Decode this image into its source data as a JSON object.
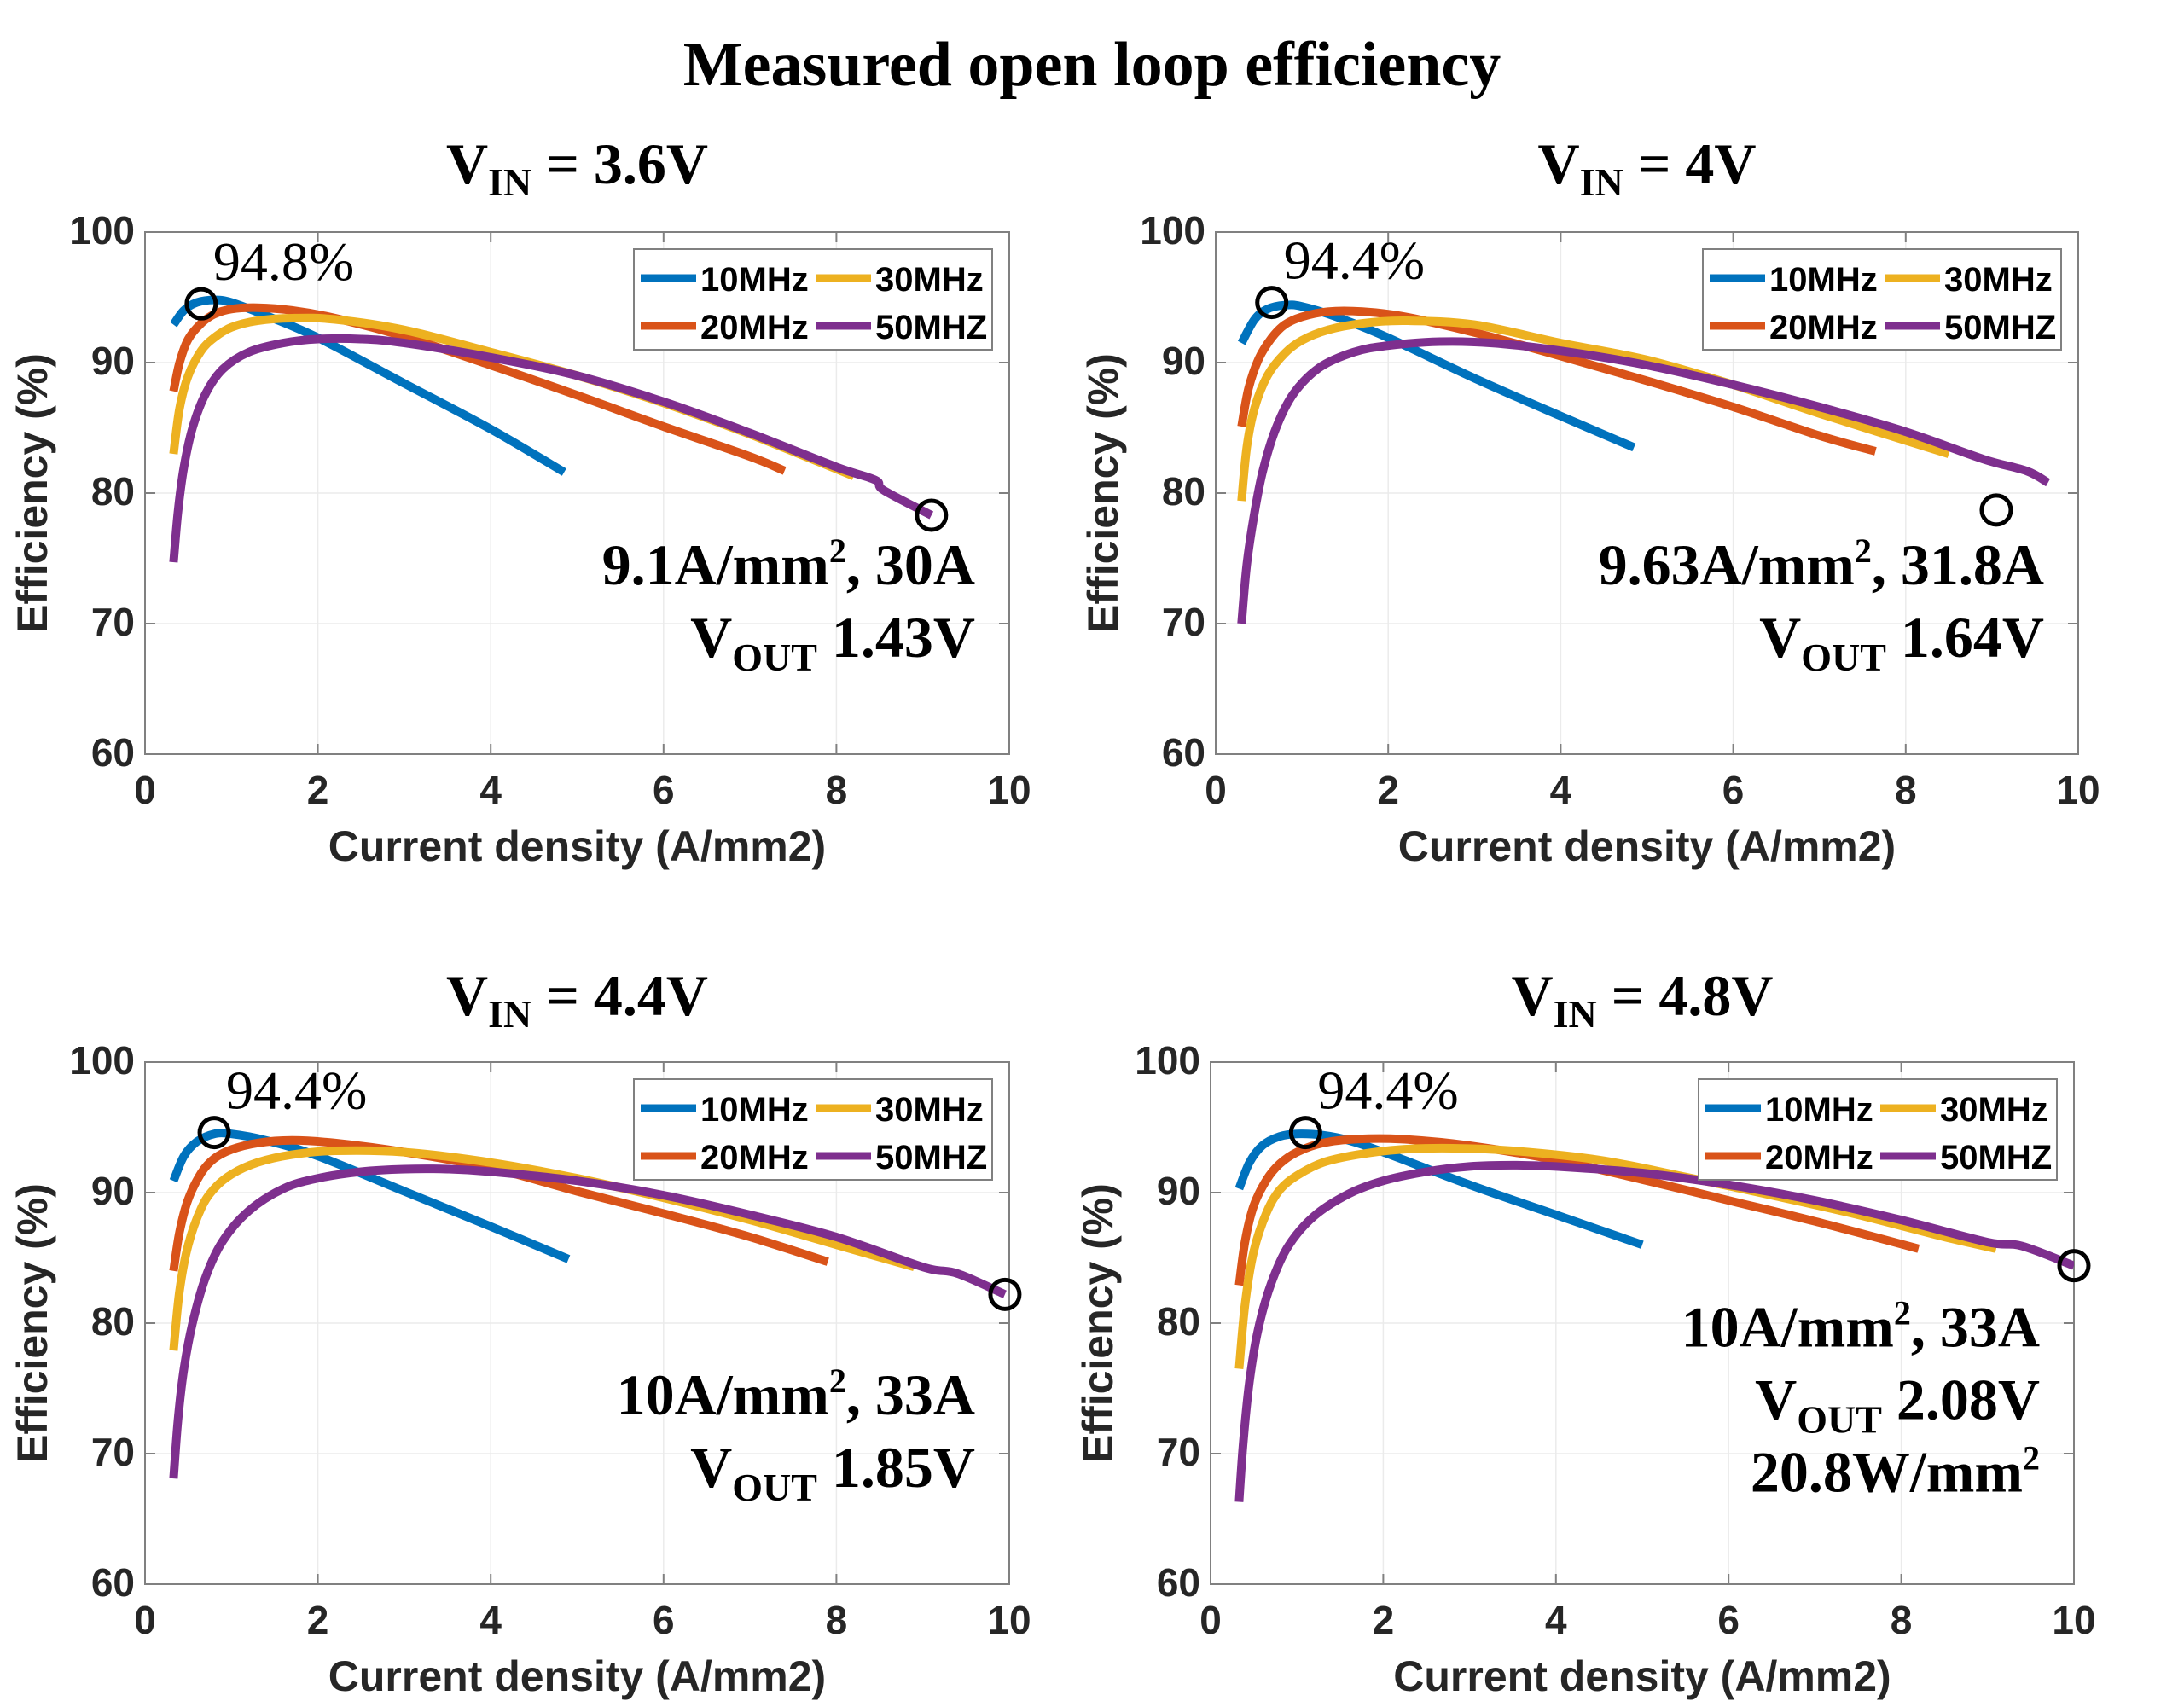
{
  "title": "Measured open loop efficiency",
  "series_colors": {
    "10MHz": "#0072BD",
    "20MHz": "#D95319",
    "30MHz": "#EDB120",
    "50MHZ": "#7E2F8E"
  },
  "chart_data": [
    {
      "type": "line",
      "id": "vin36",
      "title_main": "V",
      "title_sub": "IN",
      "title_rest": " = 3.6V",
      "xlabel": "Current density (A/mm2)",
      "ylabel": "Efficiency (%)",
      "xlim": [
        0,
        10
      ],
      "ylim": [
        60,
        100
      ],
      "xticks": [
        0,
        2,
        4,
        6,
        8,
        10
      ],
      "yticks": [
        60,
        70,
        80,
        90,
        100
      ],
      "grid": true,
      "legend": [
        "10MHz",
        "30MHz",
        "20MHz",
        "50MHZ"
      ],
      "legend_position": "top-right",
      "peak_label": "94.8%",
      "peak_marker": [
        0.65,
        94.5
      ],
      "end_marker": [
        9.1,
        78.3
      ],
      "notes": [
        {
          "parts": [
            [
              "t",
              "9.1A/mm"
            ],
            [
              "sup",
              "2"
            ],
            [
              "t",
              ", 30A"
            ]
          ]
        },
        {
          "parts": [
            [
              "t",
              "V"
            ],
            [
              "sub",
              "OUT"
            ],
            [
              "t",
              " 1.43V"
            ]
          ]
        }
      ],
      "series": [
        {
          "name": "10MHz",
          "x": [
            0.33,
            0.45,
            0.6,
            0.8,
            1.0,
            1.4,
            2.0,
            3.0,
            4.0,
            4.85
          ],
          "y": [
            92.9,
            94.0,
            94.6,
            94.8,
            94.6,
            93.6,
            91.9,
            88.4,
            84.9,
            81.6
          ]
        },
        {
          "name": "20MHz",
          "x": [
            0.33,
            0.4,
            0.5,
            0.65,
            0.8,
            1.0,
            1.3,
            1.7,
            2.2,
            3.0,
            4.0,
            5.0,
            6.0,
            7.0,
            7.4
          ],
          "y": [
            87.8,
            90.0,
            91.8,
            93.0,
            93.7,
            94.1,
            94.2,
            94.0,
            93.4,
            92.0,
            89.8,
            87.5,
            85.1,
            82.8,
            81.7
          ]
        },
        {
          "name": "30MHz",
          "x": [
            0.33,
            0.4,
            0.5,
            0.65,
            0.8,
            1.0,
            1.3,
            1.7,
            2.2,
            3.0,
            4.0,
            5.0,
            6.0,
            7.0,
            8.2
          ],
          "y": [
            83.0,
            86.5,
            89.0,
            90.9,
            91.9,
            92.7,
            93.2,
            93.4,
            93.3,
            92.5,
            90.8,
            89.0,
            86.9,
            84.5,
            81.3
          ]
        },
        {
          "name": "50MHZ",
          "x": [
            0.33,
            0.38,
            0.45,
            0.55,
            0.7,
            0.9,
            1.2,
            1.6,
            2.0,
            2.5,
            3.0,
            4.0,
            5.0,
            6.0,
            7.0,
            8.0,
            8.45,
            8.55,
            9.1
          ],
          "y": [
            74.7,
            78.5,
            82.0,
            85.0,
            87.6,
            89.5,
            90.8,
            91.5,
            91.8,
            91.8,
            91.5,
            90.4,
            89.0,
            87.0,
            84.6,
            82.0,
            81.0,
            80.2,
            78.3
          ]
        }
      ]
    },
    {
      "type": "line",
      "id": "vin40",
      "title_main": "V",
      "title_sub": "IN",
      "title_rest": " = 4V",
      "xlabel": "Current density (A/mm2)",
      "ylabel": "Efficiency (%)",
      "xlim": [
        0,
        10
      ],
      "ylim": [
        60,
        100
      ],
      "xticks": [
        0,
        2,
        4,
        6,
        8,
        10
      ],
      "yticks": [
        60,
        70,
        80,
        90,
        100
      ],
      "grid": true,
      "legend": [
        "10MHz",
        "30MHz",
        "20MHz",
        "50MHZ"
      ],
      "legend_position": "top-right",
      "peak_label": "94.4%",
      "peak_marker": [
        0.65,
        94.6
      ],
      "end_marker": [
        9.05,
        78.7
      ],
      "notes": [
        {
          "parts": [
            [
              "t",
              "9.63A/mm"
            ],
            [
              "sup",
              "2"
            ],
            [
              "t",
              ", 31.8A"
            ]
          ]
        },
        {
          "parts": [
            [
              "t",
              "V"
            ],
            [
              "sub",
              "OUT"
            ],
            [
              "t",
              " 1.64V"
            ]
          ]
        }
      ],
      "series": [
        {
          "name": "10MHz",
          "x": [
            0.3,
            0.45,
            0.6,
            0.8,
            1.0,
            1.4,
            2.0,
            3.0,
            4.0,
            4.85
          ],
          "y": [
            91.5,
            93.3,
            94.1,
            94.4,
            94.3,
            93.5,
            91.9,
            88.8,
            85.9,
            83.5
          ]
        },
        {
          "name": "20MHz",
          "x": [
            0.3,
            0.38,
            0.5,
            0.65,
            0.8,
            1.0,
            1.3,
            1.7,
            2.2,
            3.0,
            4.0,
            5.0,
            6.0,
            7.0,
            7.65
          ],
          "y": [
            85.1,
            88.0,
            90.3,
            91.9,
            92.9,
            93.5,
            93.9,
            93.9,
            93.5,
            92.3,
            90.5,
            88.6,
            86.6,
            84.4,
            83.2
          ]
        },
        {
          "name": "30MHz",
          "x": [
            0.3,
            0.36,
            0.45,
            0.6,
            0.8,
            1.0,
            1.3,
            1.7,
            2.2,
            3.0,
            4.0,
            5.0,
            6.0,
            7.0,
            8.5
          ],
          "y": [
            79.4,
            83.5,
            86.5,
            89.0,
            90.7,
            91.7,
            92.5,
            93.0,
            93.2,
            92.9,
            91.5,
            90.2,
            88.3,
            86.1,
            83.0
          ]
        },
        {
          "name": "50MHZ",
          "x": [
            0.3,
            0.36,
            0.45,
            0.55,
            0.7,
            0.9,
            1.2,
            1.6,
            2.0,
            2.6,
            3.2,
            4.0,
            5.0,
            6.0,
            7.0,
            8.0,
            8.9,
            9.4,
            9.65
          ],
          "y": [
            70.0,
            74.5,
            78.5,
            81.8,
            85.0,
            87.6,
            89.6,
            90.8,
            91.3,
            91.6,
            91.5,
            90.9,
            89.8,
            88.3,
            86.6,
            84.7,
            82.6,
            81.7,
            80.8
          ]
        }
      ]
    },
    {
      "type": "line",
      "id": "vin44",
      "title_main": "V",
      "title_sub": "IN",
      "title_rest": " = 4.4V",
      "xlabel": "Current density (A/mm2)",
      "ylabel": "Efficiency (%)",
      "xlim": [
        0,
        10
      ],
      "ylim": [
        60,
        100
      ],
      "xticks": [
        0,
        2,
        4,
        6,
        8,
        10
      ],
      "yticks": [
        60,
        70,
        80,
        90,
        100
      ],
      "grid": true,
      "legend": [
        "10MHz",
        "30MHz",
        "20MHz",
        "50MHZ"
      ],
      "legend_position": "top-right",
      "peak_label": "94.4%",
      "peak_marker": [
        0.8,
        94.6
      ],
      "end_marker": [
        9.95,
        82.2
      ],
      "notes": [
        {
          "parts": [
            [
              "t",
              "10A/mm"
            ],
            [
              "sup",
              "2"
            ],
            [
              "t",
              ", 33A"
            ]
          ]
        },
        {
          "parts": [
            [
              "t",
              "V"
            ],
            [
              "sub",
              "OUT"
            ],
            [
              "t",
              " 1.85V"
            ]
          ]
        }
      ],
      "series": [
        {
          "name": "10MHz",
          "x": [
            0.33,
            0.45,
            0.6,
            0.8,
            1.0,
            1.4,
            2.0,
            3.0,
            4.0,
            4.9
          ],
          "y": [
            90.9,
            92.8,
            93.9,
            94.5,
            94.5,
            94.0,
            92.8,
            90.1,
            87.4,
            84.9
          ]
        },
        {
          "name": "20MHz",
          "x": [
            0.33,
            0.4,
            0.5,
            0.65,
            0.8,
            1.0,
            1.3,
            1.7,
            2.2,
            3.0,
            4.0,
            5.0,
            6.0,
            7.0,
            7.9
          ],
          "y": [
            84.0,
            87.0,
            89.5,
            91.5,
            92.6,
            93.3,
            93.8,
            94.0,
            93.8,
            93.1,
            91.9,
            90.1,
            88.4,
            86.6,
            84.7
          ]
        },
        {
          "name": "30MHz",
          "x": [
            0.33,
            0.4,
            0.5,
            0.65,
            0.8,
            1.0,
            1.3,
            1.7,
            2.2,
            3.0,
            4.0,
            5.0,
            6.0,
            7.0,
            8.0,
            8.9
          ],
          "y": [
            77.9,
            82.5,
            86.0,
            88.8,
            90.3,
            91.4,
            92.3,
            92.9,
            93.2,
            93.1,
            92.3,
            91.1,
            89.6,
            87.9,
            86.0,
            84.3
          ]
        },
        {
          "name": "50MHZ",
          "x": [
            0.33,
            0.38,
            0.45,
            0.55,
            0.7,
            0.9,
            1.2,
            1.6,
            2.0,
            2.5,
            3.0,
            3.5,
            4.0,
            5.0,
            6.0,
            7.0,
            8.0,
            9.0,
            9.4,
            9.95
          ],
          "y": [
            68.1,
            72.5,
            76.5,
            80.0,
            83.5,
            86.3,
            88.6,
            90.3,
            91.1,
            91.6,
            91.8,
            91.8,
            91.6,
            90.9,
            89.8,
            88.3,
            86.6,
            84.3,
            83.8,
            82.2
          ]
        }
      ]
    },
    {
      "type": "line",
      "id": "vin48",
      "title_main": "V",
      "title_sub": "IN",
      "title_rest": " = 4.8V",
      "xlabel": "Current density (A/mm2)",
      "ylabel": "Efficiency (%)",
      "xlim": [
        0,
        10
      ],
      "ylim": [
        60,
        100
      ],
      "xticks": [
        0,
        2,
        4,
        6,
        8,
        10
      ],
      "yticks": [
        60,
        70,
        80,
        90,
        100
      ],
      "grid": true,
      "legend": [
        "10MHz",
        "30MHz",
        "20MHz",
        "50MHZ"
      ],
      "legend_position": "top-right",
      "peak_label": "94.4%",
      "peak_marker": [
        1.1,
        94.6
      ],
      "end_marker": [
        10.0,
        84.4
      ],
      "notes": [
        {
          "parts": [
            [
              "t",
              "10A/mm"
            ],
            [
              "sup",
              "2"
            ],
            [
              "t",
              ", 33A"
            ]
          ]
        },
        {
          "parts": [
            [
              "t",
              "V"
            ],
            [
              "sub",
              "OUT"
            ],
            [
              "t",
              " 2.08V"
            ]
          ]
        },
        {
          "parts": [
            [
              "t",
              "20.8W/mm"
            ],
            [
              "sup",
              "2"
            ]
          ]
        }
      ],
      "series": [
        {
          "name": "10MHz",
          "x": [
            0.33,
            0.45,
            0.6,
            0.8,
            1.0,
            1.3,
            1.6,
            2.0,
            3.0,
            4.0,
            5.0
          ],
          "y": [
            90.3,
            92.3,
            93.6,
            94.3,
            94.5,
            94.4,
            94.0,
            93.1,
            90.6,
            88.3,
            86.0
          ]
        },
        {
          "name": "20MHz",
          "x": [
            0.33,
            0.4,
            0.5,
            0.65,
            0.8,
            1.0,
            1.3,
            1.7,
            2.2,
            3.0,
            4.0,
            5.0,
            6.0,
            7.0,
            8.2
          ],
          "y": [
            82.9,
            86.3,
            89.0,
            91.0,
            92.2,
            93.1,
            93.8,
            94.1,
            94.1,
            93.6,
            92.5,
            91.0,
            89.4,
            87.8,
            85.7
          ]
        },
        {
          "name": "30MHz",
          "x": [
            0.33,
            0.4,
            0.5,
            0.65,
            0.8,
            1.0,
            1.3,
            1.7,
            2.2,
            2.8,
            3.5,
            4.5,
            5.5,
            6.5,
            7.5,
            8.5,
            9.1
          ],
          "y": [
            76.5,
            81.5,
            85.5,
            88.5,
            90.2,
            91.3,
            92.3,
            92.9,
            93.3,
            93.4,
            93.2,
            92.5,
            91.2,
            89.8,
            88.3,
            86.6,
            85.7
          ]
        },
        {
          "name": "50MHZ",
          "x": [
            0.33,
            0.38,
            0.45,
            0.55,
            0.7,
            0.9,
            1.2,
            1.6,
            2.0,
            2.5,
            3.0,
            3.5,
            4.0,
            5.0,
            6.0,
            7.0,
            8.0,
            9.0,
            9.4,
            10.0
          ],
          "y": [
            66.3,
            71.0,
            75.5,
            79.5,
            83.0,
            85.9,
            88.2,
            89.9,
            90.9,
            91.6,
            92.0,
            92.1,
            92.0,
            91.5,
            90.6,
            89.4,
            87.9,
            86.2,
            85.9,
            84.4
          ]
        }
      ]
    }
  ]
}
